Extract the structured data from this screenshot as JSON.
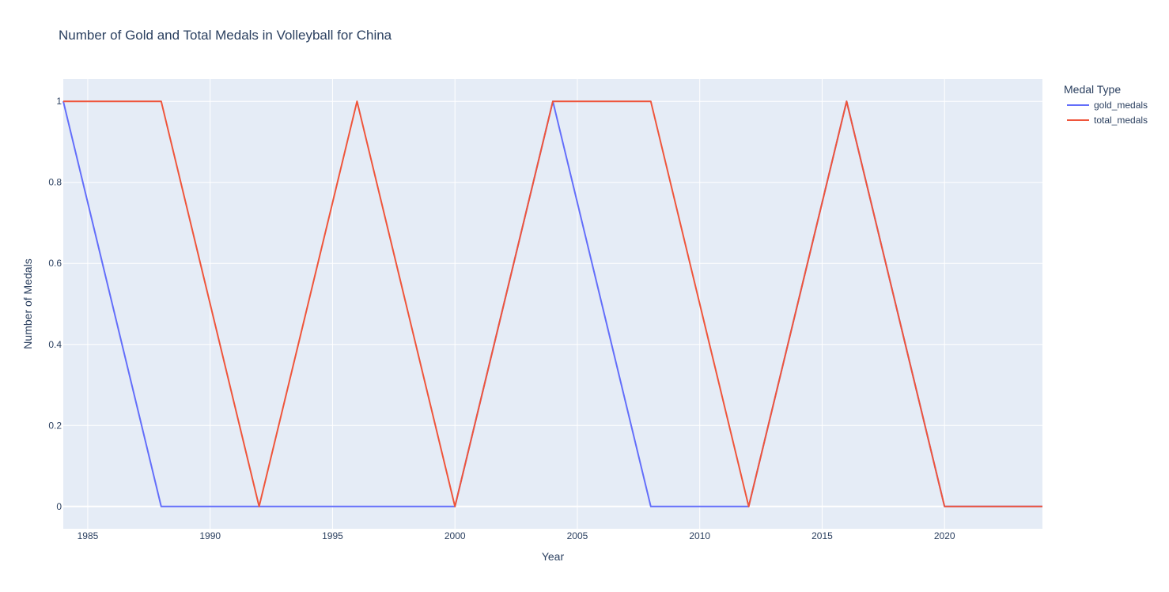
{
  "chart_data": {
    "type": "line",
    "title": "Number of Gold and Total Medals in Volleyball for China",
    "xlabel": "Year",
    "ylabel": "Number of Medals",
    "x": [
      1984,
      1988,
      1992,
      1996,
      2000,
      2004,
      2008,
      2012,
      2016,
      2020,
      2024
    ],
    "series": [
      {
        "name": "gold_medals",
        "color": "#636efa",
        "values": [
          1,
          0,
          0,
          0,
          0,
          1,
          0,
          0,
          1,
          0,
          0
        ]
      },
      {
        "name": "total_medals",
        "color": "#ef553b",
        "values": [
          1,
          1,
          0,
          1,
          0,
          1,
          1,
          0,
          1,
          0,
          0
        ]
      }
    ],
    "xlim": [
      1984,
      2024
    ],
    "ylim": [
      -0.055,
      1.055
    ],
    "x_ticks": [
      1985,
      1990,
      1995,
      2000,
      2005,
      2010,
      2015,
      2020
    ],
    "y_ticks": [
      0,
      0.2,
      0.4,
      0.6,
      0.8,
      1
    ],
    "y_tick_labels": [
      "0",
      "0.2",
      "0.4",
      "0.6",
      "0.8",
      "1"
    ],
    "grid": true,
    "legend": {
      "title": "Medal Type",
      "position": "top-right"
    },
    "colors": {
      "plot_background": "#e5ecf6",
      "grid": "#ffffff",
      "text": "#2a3f5f"
    }
  }
}
